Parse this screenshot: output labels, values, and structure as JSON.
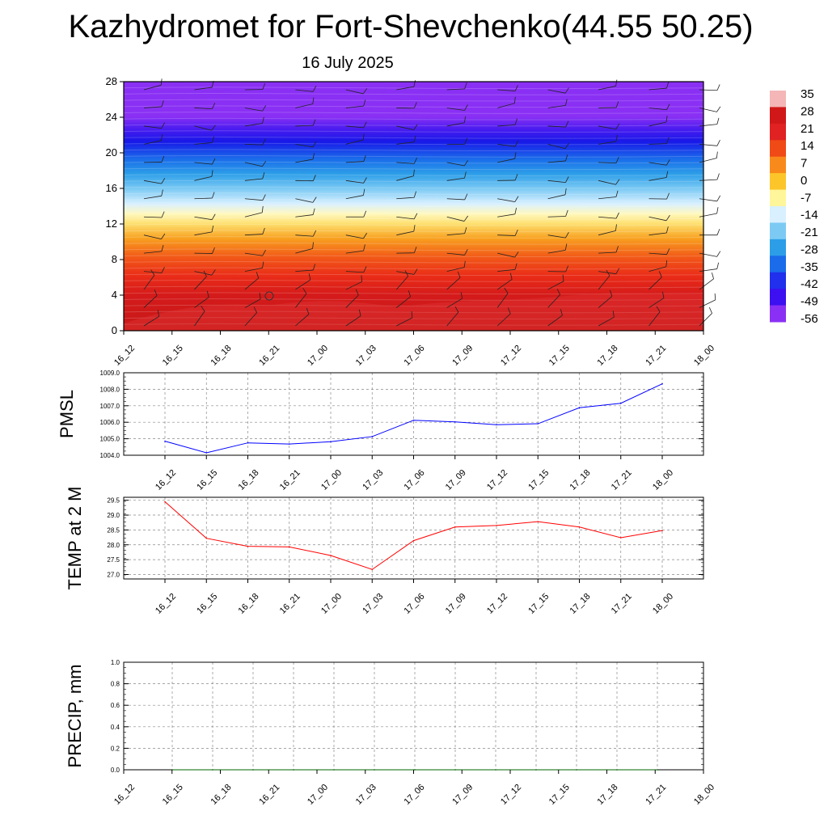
{
  "title": "Kazhydromet for Fort-Shevchenko(44.55 50.25)",
  "subtitle": "16 July 2025",
  "chart_data": [
    {
      "type": "heatmap",
      "description_role": "vertical cross-section with wind barbs",
      "x_ticks": [
        "16_12",
        "16_15",
        "16_18",
        "16_21",
        "17_00",
        "17_03",
        "17_06",
        "17_09",
        "17_12",
        "17_15",
        "17_18",
        "17_21",
        "18_00"
      ],
      "y_ticks": [
        "0",
        "4",
        "8",
        "12",
        "16",
        "20",
        "24",
        "28"
      ],
      "ylim": [
        0,
        28
      ],
      "colorbar": {
        "labels": [
          "35",
          "28",
          "21",
          "14",
          "7",
          "0",
          "-7",
          "-14",
          "-21",
          "-28",
          "-35",
          "-42",
          "-49",
          "-56"
        ],
        "colors": [
          "#f4b6b6",
          "#d01818",
          "#e02222",
          "#f04a16",
          "#f88a1c",
          "#fcc62a",
          "#fff59a",
          "#d8f0ff",
          "#7ccaf4",
          "#2c9ee8",
          "#1a6cea",
          "#2030ec",
          "#3c10f0",
          "#8a30f4"
        ]
      }
    },
    {
      "type": "line",
      "ylabel": "PMSL",
      "x": [
        "16_12",
        "16_15",
        "16_18",
        "16_21",
        "17_00",
        "17_03",
        "17_06",
        "17_09",
        "17_12",
        "17_15",
        "17_18",
        "17_21",
        "18_00"
      ],
      "values": [
        1004.85,
        1004.15,
        1004.75,
        1004.68,
        1004.82,
        1005.13,
        1006.12,
        1006.02,
        1005.85,
        1005.91,
        1006.88,
        1007.15,
        1008.33
      ],
      "y_ticks": [
        "1004.0",
        "1005.0",
        "1006.0",
        "1007.0",
        "1008.0",
        "1009.0"
      ],
      "ylim": [
        1004.0,
        1009.0
      ],
      "grid": true,
      "color": "#0000ff"
    },
    {
      "type": "line",
      "ylabel": "TEMP at 2 M",
      "x": [
        "16_12",
        "16_15",
        "16_18",
        "16_21",
        "17_00",
        "17_03",
        "17_06",
        "17_09",
        "17_12",
        "17_15",
        "17_18",
        "17_21",
        "18_00"
      ],
      "values": [
        29.45,
        28.22,
        27.95,
        27.93,
        27.64,
        27.17,
        28.14,
        28.6,
        28.65,
        28.78,
        28.6,
        28.24,
        28.48
      ],
      "y_ticks": [
        "27.0",
        "27.5",
        "28.0",
        "28.5",
        "29.0",
        "29.5"
      ],
      "ylim": [
        26.85,
        29.6
      ],
      "grid": true,
      "color": "#ff0000"
    },
    {
      "type": "line",
      "ylabel": "PRECIP, mm",
      "x": [
        "16_12",
        "16_15",
        "16_18",
        "16_21",
        "17_00",
        "17_03",
        "17_06",
        "17_09",
        "17_12",
        "17_15",
        "17_18",
        "17_21",
        "18_00"
      ],
      "values": [
        0,
        0,
        0,
        0,
        0,
        0,
        0,
        0,
        0,
        0,
        0,
        0,
        0
      ],
      "y_ticks": [
        "0.0",
        "0.2",
        "0.4",
        "0.6",
        "0.8",
        "1.0"
      ],
      "ylim": [
        0,
        1.0
      ],
      "grid": true,
      "color": "#006400"
    }
  ]
}
